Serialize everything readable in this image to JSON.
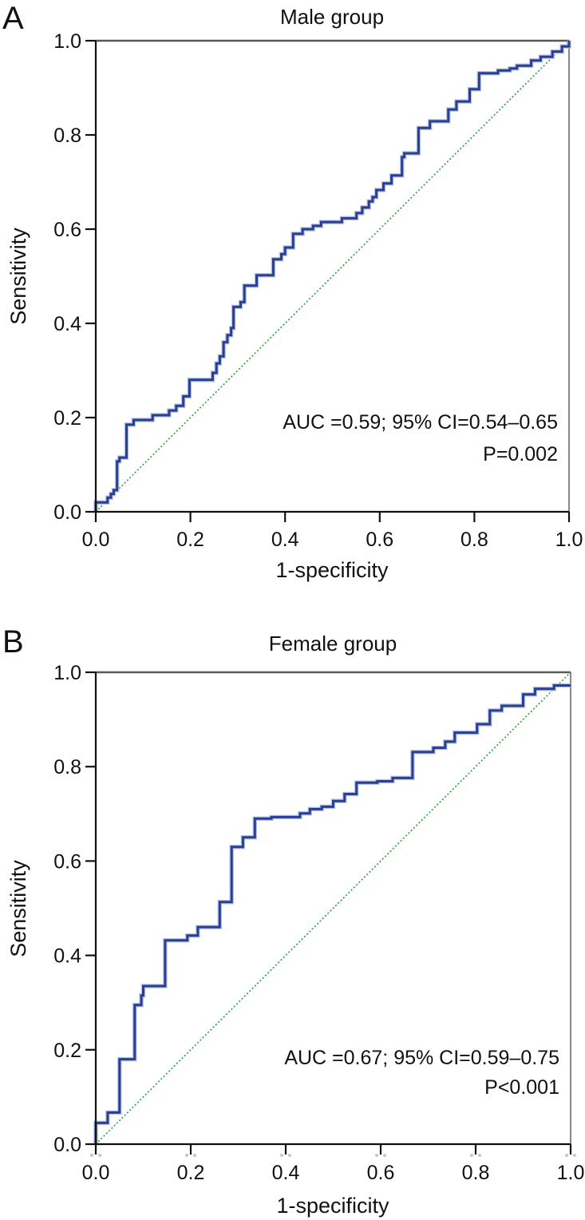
{
  "page": {
    "background": "#ffffff",
    "figure_type": "ROC curve figure, two stacked panels"
  },
  "colors": {
    "roc_curve": "#283f92",
    "roc_curve_halo": "#b8c4e6",
    "reference_line": "#1da23f",
    "axis": "#111111",
    "frame_top": "#595959",
    "frame_right": "#7a7a7a",
    "ghost_tick": "#c6c6c6",
    "text": "#111111"
  },
  "chart_data": [
    {
      "type": "line",
      "panel_label": "A",
      "title": "Male group",
      "xlabel": "1-specificity",
      "ylabel": "Sensitivity",
      "xlim": [
        0,
        1
      ],
      "ylim": [
        0,
        1
      ],
      "grid": false,
      "legend": "none",
      "x_ticks": [
        "0.0",
        "0.2",
        "0.4",
        "0.6",
        "0.8",
        "1.0"
      ],
      "y_ticks": [
        "0.0",
        "0.2",
        "0.4",
        "0.6",
        "0.8",
        "1.0"
      ],
      "annotations": [
        "AUC =0.59; 95% CI=0.54–0.65",
        "P=0.002"
      ],
      "auc": 0.59,
      "ci_95": "0.54–0.65",
      "p_value": "P=0.002",
      "series": [
        {
          "name": "ROC curve",
          "style": "step",
          "color": "#283f92",
          "points": [
            [
              0,
              0
            ],
            [
              0,
              0.02
            ],
            [
              0.025,
              0.03
            ],
            [
              0.032,
              0.038
            ],
            [
              0.038,
              0.046
            ],
            [
              0.045,
              0.107
            ],
            [
              0.05,
              0.115
            ],
            [
              0.065,
              0.185
            ],
            [
              0.08,
              0.195
            ],
            [
              0.12,
              0.205
            ],
            [
              0.155,
              0.215
            ],
            [
              0.17,
              0.225
            ],
            [
              0.185,
              0.245
            ],
            [
              0.198,
              0.28
            ],
            [
              0.247,
              0.295
            ],
            [
              0.255,
              0.315
            ],
            [
              0.262,
              0.33
            ],
            [
              0.27,
              0.36
            ],
            [
              0.278,
              0.375
            ],
            [
              0.286,
              0.39
            ],
            [
              0.291,
              0.435
            ],
            [
              0.306,
              0.445
            ],
            [
              0.314,
              0.48
            ],
            [
              0.34,
              0.502
            ],
            [
              0.375,
              0.536
            ],
            [
              0.392,
              0.547
            ],
            [
              0.4,
              0.561
            ],
            [
              0.417,
              0.59
            ],
            [
              0.437,
              0.6
            ],
            [
              0.459,
              0.607
            ],
            [
              0.476,
              0.615
            ],
            [
              0.52,
              0.623
            ],
            [
              0.551,
              0.634
            ],
            [
              0.563,
              0.646
            ],
            [
              0.577,
              0.659
            ],
            [
              0.585,
              0.668
            ],
            [
              0.593,
              0.683
            ],
            [
              0.608,
              0.697
            ],
            [
              0.625,
              0.714
            ],
            [
              0.647,
              0.753
            ],
            [
              0.652,
              0.761
            ],
            [
              0.682,
              0.815
            ],
            [
              0.706,
              0.829
            ],
            [
              0.745,
              0.854
            ],
            [
              0.762,
              0.871
            ],
            [
              0.79,
              0.897
            ],
            [
              0.81,
              0.931
            ],
            [
              0.85,
              0.937
            ],
            [
              0.875,
              0.941
            ],
            [
              0.89,
              0.947
            ],
            [
              0.92,
              0.958
            ],
            [
              0.94,
              0.966
            ],
            [
              0.965,
              0.977
            ],
            [
              0.985,
              0.988
            ],
            [
              1,
              1
            ]
          ]
        },
        {
          "name": "reference line",
          "style": "dotted",
          "color": "#1da23f",
          "points": [
            [
              0,
              0
            ],
            [
              1,
              1
            ]
          ]
        }
      ]
    },
    {
      "type": "line",
      "panel_label": "B",
      "title": "Female group",
      "xlabel": "1-specificity",
      "ylabel": "Sensitivity",
      "xlim": [
        0,
        1
      ],
      "ylim": [
        0,
        1
      ],
      "grid": false,
      "legend": "none",
      "x_ticks": [
        "0.0",
        "0.2",
        "0.4",
        "0.6",
        "0.8",
        "1.0"
      ],
      "y_ticks": [
        "0.0",
        "0.2",
        "0.4",
        "0.6",
        "0.8",
        "1.0"
      ],
      "annotations": [
        "AUC =0.67; 95% CI=0.59–0.75",
        "P<0.001"
      ],
      "auc": 0.67,
      "ci_95": "0.59–0.75",
      "p_value": "P<0.001",
      "series": [
        {
          "name": "ROC curve",
          "style": "step",
          "color": "#283f92",
          "points": [
            [
              0,
              0
            ],
            [
              0,
              0.045
            ],
            [
              0.025,
              0.067
            ],
            [
              0.05,
              0.18
            ],
            [
              0.082,
              0.295
            ],
            [
              0.096,
              0.315
            ],
            [
              0.1,
              0.335
            ],
            [
              0.146,
              0.432
            ],
            [
              0.193,
              0.442
            ],
            [
              0.215,
              0.46
            ],
            [
              0.261,
              0.513
            ],
            [
              0.286,
              0.63
            ],
            [
              0.31,
              0.65
            ],
            [
              0.335,
              0.69
            ],
            [
              0.37,
              0.693
            ],
            [
              0.43,
              0.701
            ],
            [
              0.451,
              0.71
            ],
            [
              0.476,
              0.715
            ],
            [
              0.5,
              0.727
            ],
            [
              0.524,
              0.742
            ],
            [
              0.549,
              0.766
            ],
            [
              0.593,
              0.769
            ],
            [
              0.625,
              0.776
            ],
            [
              0.667,
              0.831
            ],
            [
              0.711,
              0.84
            ],
            [
              0.736,
              0.853
            ],
            [
              0.756,
              0.872
            ],
            [
              0.803,
              0.89
            ],
            [
              0.83,
              0.919
            ],
            [
              0.855,
              0.929
            ],
            [
              0.9,
              0.953
            ],
            [
              0.925,
              0.965
            ],
            [
              0.965,
              0.972
            ],
            [
              1,
              0.972
            ]
          ]
        },
        {
          "name": "reference line",
          "style": "dotted",
          "color": "#1da23f",
          "points": [
            [
              0,
              0
            ],
            [
              1,
              1
            ]
          ]
        }
      ]
    }
  ]
}
